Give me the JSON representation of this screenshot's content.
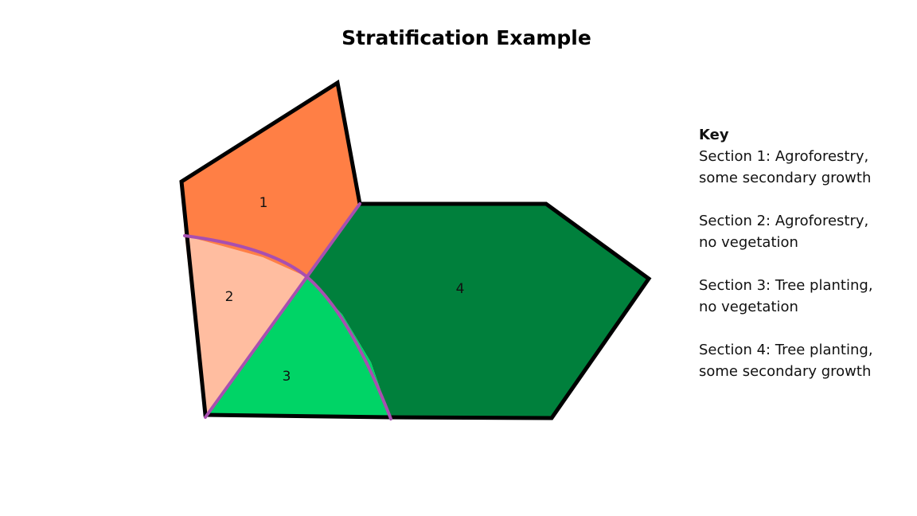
{
  "title": "Stratification Example",
  "sections": [
    {
      "label": "1",
      "color": "#FF7F45"
    },
    {
      "label": "2",
      "color": "#FFBDA0"
    },
    {
      "label": "3",
      "color": "#00D466"
    },
    {
      "label": "4",
      "color": "#00803C"
    }
  ],
  "colors": {
    "outline": "#000000",
    "divider": "#A84FB0"
  },
  "key": {
    "title": "Key",
    "entries": [
      [
        "Section 1: Agroforestry,",
        "some secondary growth"
      ],
      [
        "Section 2: Agroforestry,",
        "no vegetation"
      ],
      [
        "Section 3: Tree planting,",
        "no vegetation"
      ],
      [
        "Section 4: Tree planting,",
        "some secondary growth"
      ]
    ]
  }
}
